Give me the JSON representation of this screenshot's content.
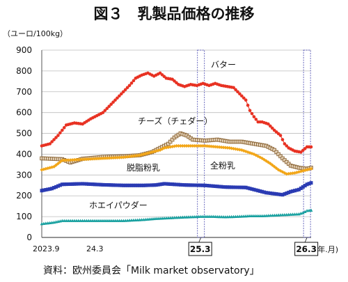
{
  "chart_data": {
    "type": "line",
    "title": "図３　乳製品価格の推移",
    "unit_label": "（ユーロ/100kg）",
    "x_unit_label": "(年.月)",
    "source": "資料：欧州委員会「Milk market observatory」",
    "y_ticks": [
      "0",
      "100",
      "200",
      "300",
      "400",
      "500",
      "600",
      "700",
      "800",
      "900"
    ],
    "ylim": [
      0,
      900
    ],
    "grid": true,
    "x_start": "2023.9",
    "x_end": "2026.3",
    "x_ticks": [
      {
        "label": "2023.9",
        "at": 0,
        "boxed": false
      },
      {
        "label": "24.3",
        "at": 26,
        "boxed": false
      },
      {
        "label": "25.3",
        "at": 78,
        "boxed": true
      },
      {
        "label": "26.3",
        "at": 130,
        "boxed": true
      }
    ],
    "highlight_weeks": [
      78,
      130
    ],
    "colors": {
      "butter": "#e83223",
      "cheese": "#8f6a3c",
      "wmp": "#f2a618",
      "smp": "#2a3bb3",
      "whey": "#19a1a0",
      "grid": "#bdbdbd",
      "highlight": "#5a5ab8"
    },
    "series": [
      {
        "name": "バター",
        "color_key": "butter",
        "marker": "circle",
        "anchors": [
          [
            0,
            440
          ],
          [
            4,
            450
          ],
          [
            8,
            490
          ],
          [
            12,
            540
          ],
          [
            16,
            550
          ],
          [
            20,
            545
          ],
          [
            24,
            570
          ],
          [
            28,
            590
          ],
          [
            30,
            600
          ],
          [
            34,
            640
          ],
          [
            38,
            680
          ],
          [
            40,
            700
          ],
          [
            43,
            730
          ],
          [
            46,
            765
          ],
          [
            49,
            780
          ],
          [
            52,
            790
          ],
          [
            55,
            775
          ],
          [
            58,
            790
          ],
          [
            61,
            765
          ],
          [
            64,
            760
          ],
          [
            67,
            735
          ],
          [
            70,
            725
          ],
          [
            73,
            735
          ],
          [
            76,
            730
          ],
          [
            79,
            740
          ],
          [
            82,
            730
          ],
          [
            85,
            740
          ],
          [
            88,
            730
          ],
          [
            91,
            725
          ],
          [
            94,
            720
          ],
          [
            96,
            700
          ],
          [
            98,
            680
          ],
          [
            100,
            660
          ],
          [
            102,
            610
          ],
          [
            104,
            580
          ],
          [
            106,
            555
          ],
          [
            108,
            555
          ],
          [
            111,
            545
          ],
          [
            114,
            515
          ],
          [
            117,
            490
          ],
          [
            119,
            450
          ],
          [
            121,
            430
          ],
          [
            124,
            415
          ],
          [
            127,
            410
          ],
          [
            130,
            435
          ],
          [
            132,
            435
          ]
        ]
      },
      {
        "name": "チーズ（チェダー）",
        "color_key": "cheese",
        "marker": "square",
        "anchors": [
          [
            0,
            380
          ],
          [
            10,
            376
          ],
          [
            14,
            360
          ],
          [
            20,
            378
          ],
          [
            30,
            387
          ],
          [
            40,
            390
          ],
          [
            48,
            395
          ],
          [
            54,
            410
          ],
          [
            58,
            430
          ],
          [
            62,
            450
          ],
          [
            65,
            480
          ],
          [
            68,
            500
          ],
          [
            71,
            490
          ],
          [
            74,
            470
          ],
          [
            80,
            465
          ],
          [
            86,
            470
          ],
          [
            92,
            460
          ],
          [
            98,
            460
          ],
          [
            104,
            450
          ],
          [
            110,
            440
          ],
          [
            114,
            420
          ],
          [
            118,
            380
          ],
          [
            122,
            345
          ],
          [
            126,
            335
          ],
          [
            130,
            330
          ],
          [
            132,
            335
          ]
        ]
      },
      {
        "name": "全粉乳",
        "color_key": "wmp",
        "marker": "diamond",
        "anchors": [
          [
            0,
            325
          ],
          [
            6,
            340
          ],
          [
            10,
            370
          ],
          [
            20,
            375
          ],
          [
            30,
            380
          ],
          [
            40,
            385
          ],
          [
            48,
            395
          ],
          [
            54,
            410
          ],
          [
            58,
            420
          ],
          [
            60,
            430
          ],
          [
            66,
            440
          ],
          [
            72,
            440
          ],
          [
            80,
            440
          ],
          [
            86,
            435
          ],
          [
            92,
            430
          ],
          [
            98,
            420
          ],
          [
            104,
            400
          ],
          [
            108,
            380
          ],
          [
            112,
            355
          ],
          [
            116,
            325
          ],
          [
            120,
            305
          ],
          [
            124,
            310
          ],
          [
            128,
            320
          ],
          [
            132,
            330
          ]
        ]
      },
      {
        "name": "脱脂粉乳",
        "color_key": "smp",
        "marker": "square",
        "anchors": [
          [
            0,
            225
          ],
          [
            5,
            235
          ],
          [
            10,
            255
          ],
          [
            20,
            258
          ],
          [
            30,
            253
          ],
          [
            40,
            250
          ],
          [
            50,
            250
          ],
          [
            56,
            252
          ],
          [
            60,
            258
          ],
          [
            70,
            252
          ],
          [
            80,
            250
          ],
          [
            90,
            242
          ],
          [
            100,
            240
          ],
          [
            106,
            225
          ],
          [
            110,
            215
          ],
          [
            114,
            210
          ],
          [
            118,
            205
          ],
          [
            122,
            220
          ],
          [
            126,
            230
          ],
          [
            130,
            255
          ],
          [
            132,
            262
          ]
        ]
      },
      {
        "name": "ホエイパウダー",
        "color_key": "whey",
        "marker": "triangle",
        "anchors": [
          [
            0,
            65
          ],
          [
            6,
            72
          ],
          [
            10,
            80
          ],
          [
            20,
            80
          ],
          [
            30,
            80
          ],
          [
            40,
            80
          ],
          [
            50,
            85
          ],
          [
            56,
            90
          ],
          [
            60,
            92
          ],
          [
            70,
            97
          ],
          [
            78,
            100
          ],
          [
            84,
            100
          ],
          [
            90,
            98
          ],
          [
            96,
            100
          ],
          [
            102,
            103
          ],
          [
            108,
            103
          ],
          [
            114,
            106
          ],
          [
            118,
            108
          ],
          [
            122,
            110
          ],
          [
            126,
            112
          ],
          [
            128,
            118
          ],
          [
            130,
            128
          ],
          [
            132,
            130
          ]
        ]
      }
    ],
    "labels": [
      {
        "text": "バター",
        "series_index": 0
      },
      {
        "text": "チーズ（チェダー）",
        "series_index": 1
      },
      {
        "text": "全粉乳",
        "series_index": 2
      },
      {
        "text": "脱脂粉乳",
        "series_index": 3
      },
      {
        "text": "ホエイパウダー",
        "series_index": 4
      }
    ]
  }
}
